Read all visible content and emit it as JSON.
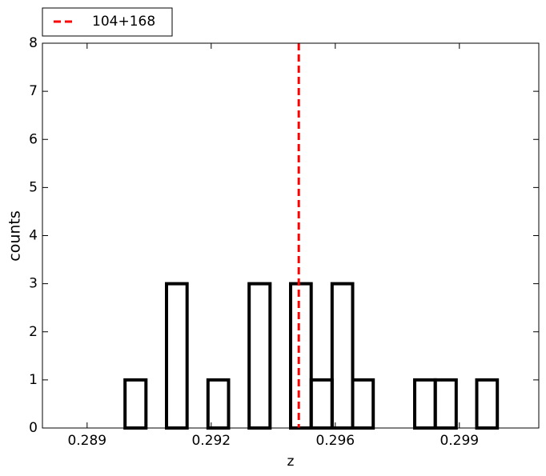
{
  "chart_data": {
    "type": "histogram",
    "xlabel": "z",
    "ylabel": "counts",
    "bins": [
      0.28774,
      0.28832,
      0.28891,
      0.28949,
      0.29007,
      0.29066,
      0.29124,
      0.29182,
      0.29241,
      0.29299,
      0.29357,
      0.29416,
      0.29474,
      0.29532,
      0.29591,
      0.29649,
      0.29707,
      0.29766,
      0.29824,
      0.29882,
      0.29941,
      0.29999,
      0.30057,
      0.30116,
      0.30174
    ],
    "values": [
      0,
      0,
      0,
      0,
      1,
      0,
      3,
      0,
      1,
      0,
      3,
      0,
      3,
      1,
      3,
      1,
      0,
      0,
      1,
      1,
      0,
      1,
      0,
      0
    ],
    "color": "#000000",
    "vline": {
      "x": 0.29497,
      "label": "104+168",
      "color": "#ff0000"
    },
    "xlim": [
      0.28774,
      0.30174
    ],
    "xticks": [
      0.289,
      {
        "value": 0.2925,
        "label": "0.292"
      },
      0.296,
      {
        "value": 0.2995,
        "label": "0.299"
      }
    ],
    "ylim": [
      0,
      8
    ],
    "yticks": [
      0,
      1,
      2,
      3,
      4,
      5,
      6,
      7,
      8
    ],
    "legend": "upper left outside"
  }
}
